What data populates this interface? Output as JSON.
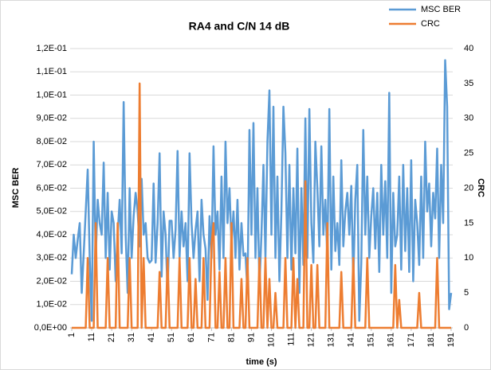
{
  "chart_data": {
    "type": "line",
    "title": "RA4 and C/N 14 dB",
    "x_label": "time (s)",
    "y_label": "MSC BER",
    "y2_label": "CRC",
    "x": [
      1,
      2,
      3,
      4,
      5,
      6,
      7,
      8,
      9,
      10,
      11,
      12,
      13,
      14,
      15,
      16,
      17,
      18,
      19,
      20,
      21,
      22,
      23,
      24,
      25,
      26,
      27,
      28,
      29,
      30,
      31,
      32,
      33,
      34,
      35,
      36,
      37,
      38,
      39,
      40,
      41,
      42,
      43,
      44,
      45,
      46,
      47,
      48,
      49,
      50,
      51,
      52,
      53,
      54,
      55,
      56,
      57,
      58,
      59,
      60,
      61,
      62,
      63,
      64,
      65,
      66,
      67,
      68,
      69,
      70,
      71,
      72,
      73,
      74,
      75,
      76,
      77,
      78,
      79,
      80,
      81,
      82,
      83,
      84,
      85,
      86,
      87,
      88,
      89,
      90,
      91,
      92,
      93,
      94,
      95,
      96,
      97,
      98,
      99,
      100,
      101,
      102,
      103,
      104,
      105,
      106,
      107,
      108,
      109,
      110,
      111,
      112,
      113,
      114,
      115,
      116,
      117,
      118,
      119,
      120,
      121,
      122,
      123,
      124,
      125,
      126,
      127,
      128,
      129,
      130,
      131,
      132,
      133,
      134,
      135,
      136,
      137,
      138,
      139,
      140,
      141,
      142,
      143,
      144,
      145,
      146,
      147,
      148,
      149,
      150,
      151,
      152,
      153,
      154,
      155,
      156,
      157,
      158,
      159,
      160,
      161,
      162,
      163,
      164,
      165,
      166,
      167,
      168,
      169,
      170,
      171,
      172,
      173,
      174,
      175,
      176,
      177,
      178,
      179,
      180,
      181,
      182,
      183,
      184,
      185,
      186,
      187,
      188,
      189,
      190,
      191
    ],
    "series": [
      {
        "name": "MSC BER",
        "color": "#5b9bd5",
        "axis": "y",
        "values": [
          0.023,
          0.04,
          0.03,
          0.038,
          0.045,
          0.015,
          0.032,
          0.05,
          0.068,
          0.03,
          0.003,
          0.08,
          0.03,
          0.055,
          0.045,
          0.04,
          0.071,
          0.03,
          0.058,
          0.025,
          0.05,
          0.045,
          0.02,
          0.04,
          0.055,
          0.032,
          0.097,
          0.04,
          0.015,
          0.06,
          0.03,
          0.048,
          0.058,
          0.05,
          0.035,
          0.064,
          0.04,
          0.045,
          0.03,
          0.028,
          0.029,
          0.062,
          0.028,
          0.045,
          0.075,
          0.022,
          0.05,
          0.04,
          0.015,
          0.046,
          0.046,
          0.03,
          0.042,
          0.076,
          0.03,
          0.05,
          0.035,
          0.045,
          0.02,
          0.075,
          0.045,
          0.03,
          0.042,
          0.05,
          0.02,
          0.055,
          0.04,
          0.034,
          0.012,
          0.048,
          0.03,
          0.078,
          0.04,
          0.05,
          0.025,
          0.065,
          0.03,
          0.08,
          0.045,
          0.06,
          0.036,
          0.05,
          0.03,
          0.055,
          0.025,
          0.045,
          0.031,
          0.032,
          0.015,
          0.085,
          0.04,
          0.088,
          0.03,
          0.06,
          0.018,
          0.04,
          0.07,
          0.03,
          0.08,
          0.102,
          0.04,
          0.095,
          0.03,
          0.065,
          0.02,
          0.05,
          0.095,
          0.075,
          0.03,
          0.07,
          0.025,
          0.06,
          0.032,
          0.077,
          0.015,
          0.06,
          0.027,
          0.09,
          0.03,
          0.094,
          0.045,
          0.028,
          0.08,
          0.06,
          0.035,
          0.078,
          0.04,
          0.055,
          0.03,
          0.094,
          0.025,
          0.065,
          0.033,
          0.045,
          0.027,
          0.072,
          0.035,
          0.05,
          0.058,
          0.04,
          0.061,
          0.02,
          0.055,
          0.07,
          0.003,
          0.028,
          0.085,
          0.04,
          0.065,
          0.03,
          0.048,
          0.06,
          0.034,
          0.058,
          0.024,
          0.07,
          0.04,
          0.063,
          0.03,
          0.101,
          0.015,
          0.058,
          0.035,
          0.04,
          0.065,
          0.025,
          0.07,
          0.033,
          0.06,
          0.024,
          0.072,
          0.02,
          0.055,
          0.045,
          0.027,
          0.065,
          0.03,
          0.08,
          0.05,
          0.062,
          0.035,
          0.058,
          0.047,
          0.077,
          0.03,
          0.07,
          0.045,
          0.115,
          0.095,
          0.008,
          0.015
        ]
      },
      {
        "name": "CRC",
        "color": "#ed7d31",
        "axis": "y2",
        "values": [
          0,
          0,
          0,
          0,
          0,
          0,
          0,
          0,
          10,
          0,
          0,
          0,
          15,
          0,
          0,
          0,
          0,
          0,
          10,
          0,
          0,
          0,
          0,
          15,
          0,
          0,
          0,
          0,
          0,
          10,
          0,
          0,
          0,
          0,
          35,
          0,
          10,
          0,
          0,
          0,
          0,
          0,
          0,
          0,
          8,
          0,
          0,
          0,
          10,
          0,
          0,
          0,
          0,
          0,
          10,
          0,
          0,
          0,
          0,
          10,
          0,
          0,
          7,
          0,
          0,
          0,
          10,
          0,
          0,
          0,
          12,
          15,
          0,
          0,
          8,
          0,
          0,
          10,
          0,
          0,
          15,
          0,
          0,
          0,
          0,
          7,
          0,
          0,
          10,
          0,
          0,
          0,
          0,
          0,
          10,
          0,
          0,
          10,
          0,
          7,
          0,
          0,
          5,
          0,
          0,
          0,
          0,
          10,
          0,
          0,
          0,
          10,
          0,
          7,
          0,
          0,
          0,
          21,
          0,
          0,
          9,
          0,
          0,
          9,
          0,
          0,
          0,
          0,
          15,
          0,
          0,
          0,
          0,
          0,
          0,
          8,
          0,
          0,
          0,
          0,
          0,
          10,
          0,
          0,
          0,
          0,
          0,
          0,
          10,
          0,
          0,
          0,
          0,
          0,
          0,
          0,
          0,
          0,
          0,
          0,
          0,
          0,
          9,
          0,
          4,
          0,
          0,
          0,
          0,
          0,
          0,
          0,
          0,
          0,
          5,
          0,
          0,
          0,
          0,
          0,
          0,
          0,
          0,
          10,
          0,
          0,
          0,
          0,
          0,
          0,
          0
        ]
      }
    ],
    "xlim": [
      1,
      191
    ],
    "xticks": [
      1,
      11,
      21,
      31,
      41,
      51,
      61,
      71,
      81,
      91,
      101,
      111,
      121,
      131,
      141,
      151,
      161,
      171,
      181,
      191
    ],
    "ylim": [
      0,
      0.12
    ],
    "yticks": [
      {
        "value": 0,
        "label": "0,0E+00"
      },
      {
        "value": 0.01,
        "label": "1,0E-02"
      },
      {
        "value": 0.02,
        "label": "2,0E-02"
      },
      {
        "value": 0.03,
        "label": "3,0E-02"
      },
      {
        "value": 0.04,
        "label": "4,0E-02"
      },
      {
        "value": 0.05,
        "label": "5,0E-02"
      },
      {
        "value": 0.06,
        "label": "6,0E-02"
      },
      {
        "value": 0.07,
        "label": "7,0E-02"
      },
      {
        "value": 0.08,
        "label": "8,0E-02"
      },
      {
        "value": 0.09,
        "label": "9,0E-02"
      },
      {
        "value": 0.1,
        "label": "1,0E-01"
      },
      {
        "value": 0.11,
        "label": "1,1E-01"
      },
      {
        "value": 0.12,
        "label": "1,2E-01"
      }
    ],
    "y2lim": [
      0,
      40
    ],
    "y2ticks": [
      0,
      5,
      10,
      15,
      20,
      25,
      30,
      35,
      40
    ],
    "grid": true,
    "legend": "top-right"
  }
}
